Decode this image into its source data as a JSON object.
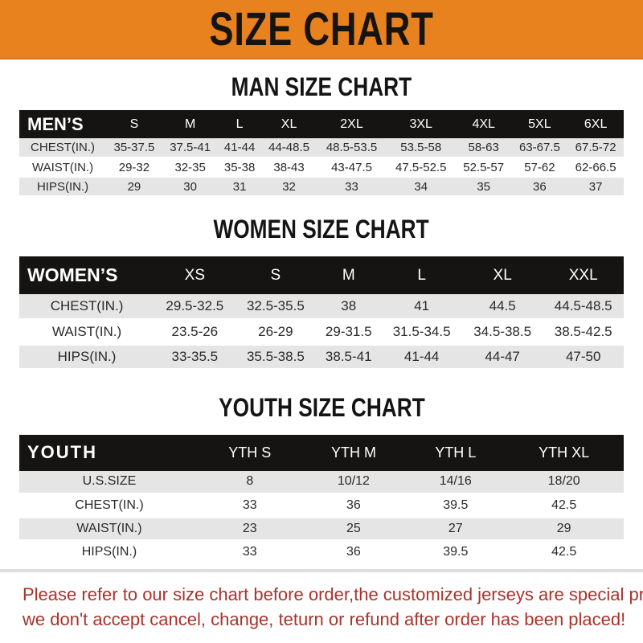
{
  "banner": {
    "title": "SIZE CHART"
  },
  "sections": {
    "man": {
      "heading": "MAN SIZE CHART"
    },
    "women": {
      "heading": "WOMEN SIZE CHART"
    },
    "youth": {
      "heading": "YOUTH SIZE CHART"
    }
  },
  "tables": {
    "men": {
      "label": "MEN’S",
      "columns": [
        "S",
        "M",
        "L",
        "XL",
        "2XL",
        "3XL",
        "4XL",
        "5XL",
        "6XL"
      ],
      "rows": [
        {
          "label": "CHEST(IN.)",
          "values": [
            "35-37.5",
            "37.5-41",
            "41-44",
            "44-48.5",
            "48.5-53.5",
            "53.5-58",
            "58-63",
            "63-67.5",
            "67.5-72"
          ]
        },
        {
          "label": "WAIST(IN.)",
          "values": [
            "29-32",
            "32-35",
            "35-38",
            "38-43",
            "43-47.5",
            "47.5-52.5",
            "52.5-57",
            "57-62",
            "62-66.5"
          ]
        },
        {
          "label": "HIPS(IN.)",
          "values": [
            "29",
            "30",
            "31",
            "32",
            "33",
            "34",
            "35",
            "36",
            "37"
          ]
        }
      ]
    },
    "women": {
      "label": "WOMEN’S",
      "columns": [
        "XS",
        "S",
        "M",
        "L",
        "XL",
        "XXL"
      ],
      "rows": [
        {
          "label": "CHEST(IN.)",
          "values": [
            "29.5-32.5",
            "32.5-35.5",
            "38",
            "41",
            "44.5",
            "44.5-48.5"
          ]
        },
        {
          "label": "WAIST(IN.)",
          "values": [
            "23.5-26",
            "26-29",
            "29-31.5",
            "31.5-34.5",
            "34.5-38.5",
            "38.5-42.5"
          ]
        },
        {
          "label": "HIPS(IN.)",
          "values": [
            "33-35.5",
            "35.5-38.5",
            "38.5-41",
            "41-44",
            "44-47",
            "47-50"
          ]
        }
      ]
    },
    "youth": {
      "label": "YOUTH",
      "columns": [
        "YTH S",
        "YTH M",
        "YTH L",
        "YTH XL"
      ],
      "rows": [
        {
          "label": "U.S.SIZE",
          "values": [
            "8",
            "10/12",
            "14/16",
            "18/20"
          ]
        },
        {
          "label": "CHEST(IN.)",
          "values": [
            "33",
            "36",
            "39.5",
            "42.5"
          ]
        },
        {
          "label": "WAIST(IN.)",
          "values": [
            "23",
            "25",
            "27",
            "29"
          ]
        },
        {
          "label": "HIPS(IN.)",
          "values": [
            "33",
            "36",
            "39.5",
            "42.5"
          ]
        }
      ]
    }
  },
  "footer": {
    "line1": "Please refer to our size chart before order,the customized jerseys are special products,",
    "line2": "we don't accept cancel, change, teturn or refund after order has been placed!"
  },
  "colors": {
    "banner_orange": "#E8821E",
    "header_black": "#161413",
    "stripe_gray": "#E5E5E5",
    "note_red": "#A9332B"
  }
}
